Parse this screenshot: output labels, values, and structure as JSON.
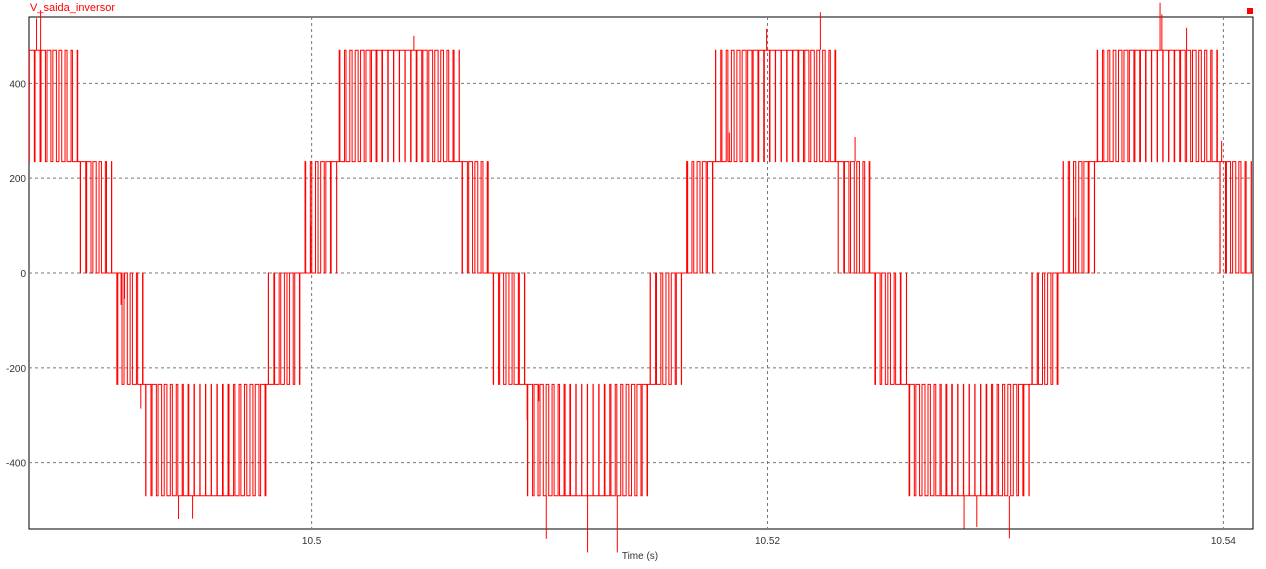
{
  "chart_data": {
    "type": "line",
    "title": "V_saida_inversor",
    "xlabel": "Time (s)",
    "ylabel": "",
    "xlim": [
      10.4876,
      10.5413
    ],
    "ylim": [
      -540,
      540
    ],
    "x_ticks": [
      10.5,
      10.52,
      10.54
    ],
    "x_tick_labels": [
      "10.5",
      "10.52",
      "10.54"
    ],
    "y_ticks": [
      400,
      200,
      0,
      -200,
      -400
    ],
    "y_tick_labels": [
      "400",
      "200",
      "0",
      "-200",
      "-400"
    ],
    "grid": true,
    "legend": "top-right",
    "waveform": {
      "kind": "multilevel-pwm",
      "levels": [
        -470,
        -235,
        0,
        235,
        470
      ],
      "fundamental_frequency_hz": 60,
      "first_positive_zero_crossing_s": 10.4996,
      "switching_frequency_hz": 4000
    },
    "series": [
      {
        "name": "V_saida_inversor",
        "color": "#ff0000"
      }
    ]
  }
}
